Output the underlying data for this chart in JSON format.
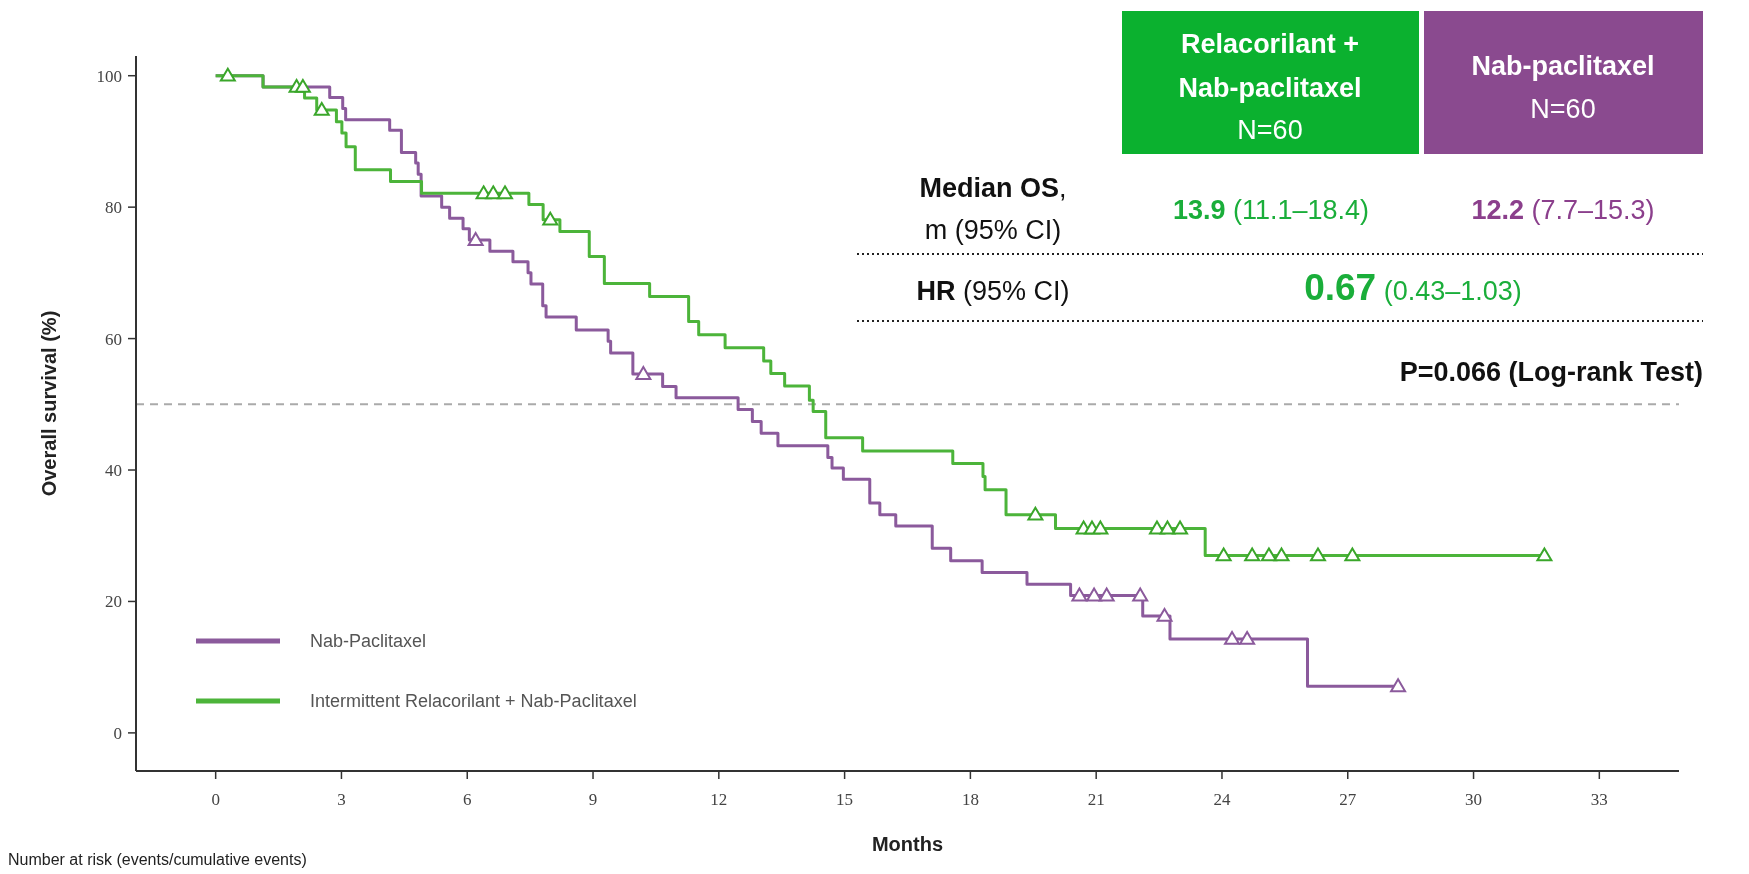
{
  "chart_data": {
    "type": "step",
    "xlabel": "Months",
    "ylabel": "Overall survival (%)",
    "xlim": [
      -1.9,
      34.9
    ],
    "ylim": [
      -5.8,
      103
    ],
    "xticks": [
      0,
      3,
      6,
      9,
      12,
      15,
      18,
      21,
      24,
      27,
      30,
      33
    ],
    "yticks": [
      0,
      20,
      40,
      60,
      80,
      100
    ],
    "grid": false,
    "legend": "bottom left",
    "marker": "none",
    "line_style": "solid",
    "series": [
      {
        "name": "Nab-Paclitaxel",
        "color": "#8b5a9c",
        "x": [
          0,
          1.13,
          2.72,
          3.03,
          3.1,
          4.15,
          4.43,
          4.77,
          4.83,
          4.9,
          5.39,
          5.58,
          5.9,
          6.05,
          6.54,
          7.09,
          7.45,
          7.52,
          7.8,
          7.88,
          8.6,
          9.36,
          9.42,
          9.95,
          10.66,
          10.98,
          12.46,
          12.8,
          13.01,
          13.41,
          14.6,
          14.7,
          14.97,
          15.6,
          15.84,
          16.22,
          17.09,
          17.53,
          18.28,
          19.35,
          20.39,
          22.11,
          22.76,
          26.04,
          28.2
        ],
        "values": [
          100,
          98.3,
          96.7,
          95,
          93.3,
          91.7,
          88.3,
          86.7,
          85,
          81.7,
          80,
          78.3,
          76.7,
          75,
          73.3,
          71.7,
          70,
          68.3,
          65,
          63.3,
          61.3,
          59.6,
          57.8,
          54.6,
          52.7,
          51,
          49.2,
          47.4,
          45.6,
          43.7,
          41.9,
          40.3,
          38.6,
          35,
          33.2,
          31.5,
          28.1,
          26.2,
          24.4,
          22.6,
          20.9,
          17.8,
          14.3,
          7.1,
          7.1
        ]
      },
      {
        "name": "Intermittent Relacorilant + Nab-Paclitaxel",
        "color": "#4cb43a",
        "x": [
          0,
          1.13,
          2.12,
          2.41,
          2.88,
          3.01,
          3.11,
          3.33,
          4.17,
          4.91,
          7.47,
          7.81,
          8.21,
          8.91,
          9.27,
          10.35,
          11.28,
          11.52,
          12.15,
          13.07,
          13.24,
          13.57,
          14.16,
          14.25,
          14.55,
          15.43,
          17.58,
          18.3,
          18.35,
          18.85,
          20.03,
          23.6,
          31.69
        ],
        "values": [
          100,
          98.3,
          96.6,
          94.8,
          93,
          91.3,
          89.2,
          85.7,
          83.9,
          82.1,
          80.4,
          78.1,
          76.3,
          72.5,
          68.4,
          66.4,
          62.6,
          60.6,
          58.6,
          56.6,
          54.7,
          52.8,
          50.6,
          48.9,
          44.9,
          42.9,
          41,
          39,
          37,
          33.2,
          31.1,
          27,
          27
        ]
      },
      {
        "type": "scatter",
        "marker": "triangle",
        "color": "#8b5a9c",
        "x": [
          6.2,
          10.2,
          20.6,
          20.95,
          21.25,
          22.05,
          22.63,
          24.24,
          24.6,
          28.2
        ],
        "values": [
          75,
          54.6,
          20.9,
          20.9,
          20.9,
          20.9,
          17.8,
          14.3,
          14.3,
          7.1
        ]
      },
      {
        "type": "scatter",
        "marker": "triangle",
        "color": "#3aa62a",
        "x": [
          0.29,
          1.93,
          2.08,
          2.53,
          6.39,
          6.62,
          6.9,
          7.98,
          19.55,
          20.7,
          20.9,
          21.1,
          22.45,
          22.7,
          23.0,
          24.04,
          24.72,
          25.12,
          25.42,
          26.29,
          27.11,
          31.69
        ],
        "values": [
          100,
          98.3,
          98.3,
          94.8,
          82.1,
          82.1,
          82.1,
          78.1,
          33.2,
          31.1,
          31.1,
          31.1,
          31.1,
          31.1,
          31.1,
          27,
          27,
          27,
          27,
          27,
          27,
          27
        ]
      }
    ],
    "ref_lines": [
      {
        "axis": "y",
        "value": 50,
        "color": "#aaaaaa",
        "line_style": "dashed"
      }
    ],
    "annotations": [
      "Relacorilant +",
      "Nab-paclitaxel",
      "N=60",
      "Nab-paclitaxel",
      "N=60",
      "Median OS",
      ",",
      "m (95% CI)",
      "13.9",
      "(11.1–18.4)",
      "12.2",
      "(7.7–15.3)",
      "HR",
      "(95% CI)",
      "0.67",
      "(0.43–1.03)",
      "P=0.066 (Log-rank Test)",
      "Number at risk (events/cumulative events)"
    ]
  }
}
